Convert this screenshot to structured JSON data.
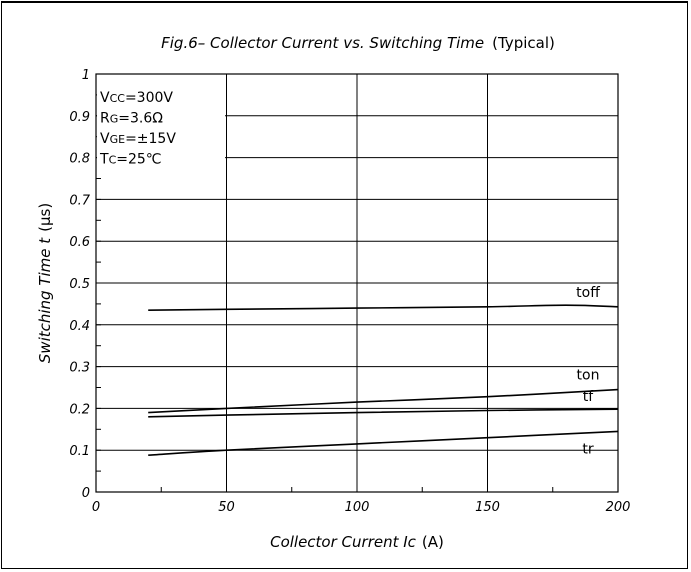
{
  "chart_data": {
    "type": "line",
    "title": "Fig.6– Collector Current vs. Switching Time",
    "title_suffix": "(Typical)",
    "xlabel": "Collector Current Ic",
    "xlabel_unit": "(A)",
    "ylabel": "Switching Time t",
    "ylabel_unit": "(μs)",
    "xlim": [
      0,
      200
    ],
    "ylim": [
      0,
      1
    ],
    "x_ticks": [
      0,
      50,
      100,
      150,
      200
    ],
    "y_ticks": [
      0,
      0.1,
      0.2,
      0.3,
      0.4,
      0.5,
      0.6,
      0.7,
      0.8,
      0.9,
      1
    ],
    "x_tick_labels": [
      "0",
      "50",
      "100",
      "150",
      "200"
    ],
    "y_tick_labels": [
      "0",
      "0.1",
      "0.2",
      "0.3",
      "0.4",
      "0.5",
      "0.6",
      "0.7",
      "0.8",
      "0.9",
      "1"
    ],
    "grid": true,
    "conditions": [
      {
        "main": "V",
        "sub": "CC",
        "rest": "=300V"
      },
      {
        "main": "R",
        "sub": "G",
        "rest": "=3.6Ω"
      },
      {
        "main": "V",
        "sub": "GE",
        "rest": "=±15V"
      },
      {
        "main": "T",
        "sub": "C",
        "rest": "=25℃"
      }
    ],
    "series": [
      {
        "name": "toff",
        "x": [
          20,
          50,
          100,
          150,
          180,
          200
        ],
        "y": [
          0.435,
          0.437,
          0.44,
          0.443,
          0.447,
          0.443
        ]
      },
      {
        "name": "ton",
        "x": [
          20,
          50,
          100,
          150,
          200
        ],
        "y": [
          0.19,
          0.2,
          0.215,
          0.228,
          0.245
        ]
      },
      {
        "name": "tf",
        "x": [
          20,
          50,
          100,
          150,
          200
        ],
        "y": [
          0.18,
          0.184,
          0.19,
          0.195,
          0.198
        ]
      },
      {
        "name": "tr",
        "x": [
          20,
          50,
          100,
          150,
          200
        ],
        "y": [
          0.088,
          0.1,
          0.115,
          0.13,
          0.145
        ]
      }
    ]
  }
}
